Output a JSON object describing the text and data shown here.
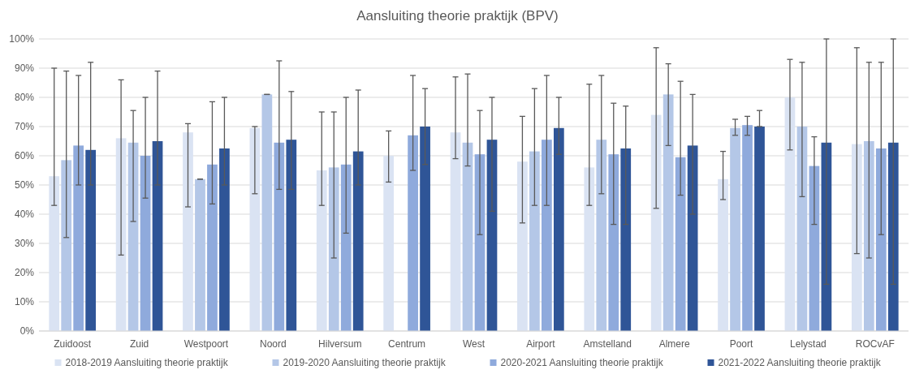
{
  "chart_data": {
    "type": "bar",
    "title": "Aansluiting theorie praktijk (BPV)",
    "categories": [
      "Zuidoost",
      "Zuid",
      "Westpoort",
      "Noord",
      "Hilversum",
      "Centrum",
      "West",
      "Airport",
      "Amstelland",
      "Almere",
      "Poort",
      "Lelystad",
      "ROCvAF"
    ],
    "series": [
      {
        "name": "2018-2019 Aansluiting theorie praktijk",
        "color": "#dae3f3",
        "values": [
          53,
          66,
          68,
          69.5,
          55,
          60,
          68,
          58,
          56,
          74,
          52,
          80,
          64
        ],
        "errors": [
          [
            43,
            90
          ],
          [
            26,
            86
          ],
          [
            42.5,
            71
          ],
          [
            47,
            70
          ],
          [
            43,
            75
          ],
          [
            51,
            68.5
          ],
          [
            59,
            87
          ],
          [
            37,
            73.5
          ],
          [
            43,
            84.5
          ],
          [
            42,
            97
          ],
          [
            45,
            61.5
          ],
          [
            62,
            93
          ],
          [
            26.5,
            97
          ]
        ]
      },
      {
        "name": "2019-2020 Aansluiting theorie praktijk",
        "color": "#b4c7e7",
        "values": [
          58.5,
          64.5,
          52,
          81,
          56,
          null,
          64.5,
          61.5,
          65.5,
          81,
          69.5,
          70,
          65
        ],
        "errors": [
          [
            32,
            89
          ],
          [
            37.5,
            75.5
          ],
          [
            52,
            52
          ],
          [
            81,
            81
          ],
          [
            25,
            75
          ],
          null,
          [
            56.5,
            88
          ],
          [
            43,
            83
          ],
          [
            47,
            87.5
          ],
          [
            63.5,
            91.5
          ],
          [
            67,
            72.5
          ],
          [
            46,
            92
          ],
          [
            25,
            92
          ]
        ]
      },
      {
        "name": "2020-2021 Aansluiting theorie praktijk",
        "color": "#8faadc",
        "values": [
          63.5,
          60,
          57,
          64.5,
          57,
          67,
          60.5,
          65.5,
          60.5,
          59.5,
          70.5,
          56.5,
          62.5
        ],
        "errors": [
          [
            50,
            87.5
          ],
          [
            45.5,
            80
          ],
          [
            43.5,
            78.5
          ],
          [
            48.5,
            92.5
          ],
          [
            33.5,
            80
          ],
          [
            55,
            87.5
          ],
          [
            33,
            75.5
          ],
          [
            43,
            87.5
          ],
          [
            36.5,
            78
          ],
          [
            46.5,
            85.5
          ],
          [
            67,
            73.5
          ],
          [
            36.5,
            66.5
          ],
          [
            33,
            92
          ]
        ]
      },
      {
        "name": "2021-2022 Aansluiting theorie praktijk",
        "color": "#2f5597",
        "values": [
          62,
          65,
          62.5,
          65.5,
          61.5,
          70,
          65.5,
          69.5,
          62.5,
          63.5,
          70,
          64.5,
          64.5
        ],
        "errors": [
          [
            50,
            92
          ],
          [
            50,
            89
          ],
          [
            50,
            80
          ],
          [
            48.5,
            82
          ],
          [
            50,
            82.5
          ],
          [
            57,
            83
          ],
          [
            41,
            80
          ],
          [
            60.5,
            80
          ],
          [
            36.5,
            77
          ],
          [
            40,
            81
          ],
          [
            70,
            75.5
          ],
          [
            16,
            100
          ],
          [
            16,
            100
          ]
        ]
      }
    ],
    "ylim": [
      0,
      100
    ],
    "yticks": [
      {
        "value": 0,
        "label": "0%"
      },
      {
        "value": 10,
        "label": "10%"
      },
      {
        "value": 20,
        "label": "20%"
      },
      {
        "value": 30,
        "label": "30%"
      },
      {
        "value": 40,
        "label": "40%"
      },
      {
        "value": 50,
        "label": "50%"
      },
      {
        "value": 60,
        "label": "60%"
      },
      {
        "value": 70,
        "label": "70%"
      },
      {
        "value": 80,
        "label": "80%"
      },
      {
        "value": 90,
        "label": "90%"
      },
      {
        "value": 100,
        "label": "100%"
      }
    ],
    "grid": "y",
    "legend": "bottom"
  }
}
